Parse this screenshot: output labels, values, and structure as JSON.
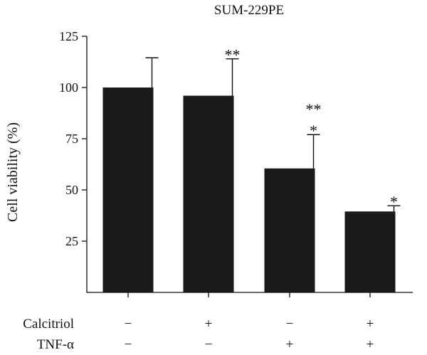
{
  "chart_data": {
    "type": "bar",
    "title": "SUM-229PE",
    "xlabel": "",
    "ylabel": "Cell viability (%)",
    "ylim": [
      0,
      125
    ],
    "yticks": [
      25,
      50,
      75,
      100,
      125
    ],
    "grid": false,
    "bar_color": "#1a1a1a",
    "series": [
      {
        "values": [
          100,
          96,
          60.5,
          39.5
        ],
        "error_plus": [
          14.5,
          18,
          16.5,
          2.8
        ],
        "significance": [
          [
            "",
            ""
          ],
          [
            "**"
          ],
          [
            "*",
            "**"
          ],
          [
            "*"
          ]
        ]
      }
    ],
    "conditions": [
      {
        "label": "Calcitriol",
        "signs": [
          "−",
          "+",
          "−",
          "+"
        ]
      },
      {
        "label": "TNF-α",
        "signs": [
          "−",
          "−",
          "+",
          "+"
        ]
      }
    ]
  }
}
